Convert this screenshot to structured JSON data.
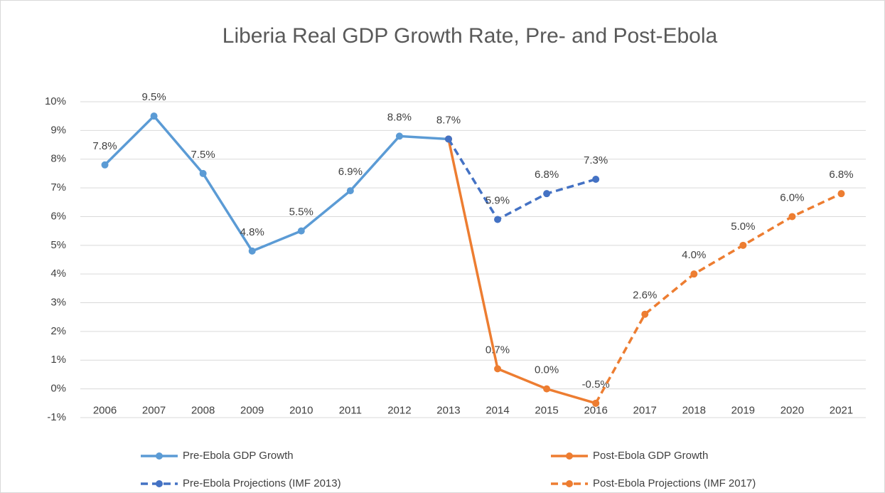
{
  "chart_data": {
    "type": "line",
    "title": "Liberia Real GDP Growth Rate, Pre- and Post-Ebola",
    "categories": [
      "2006",
      "2007",
      "2008",
      "2009",
      "2010",
      "2011",
      "2012",
      "2013",
      "2014",
      "2015",
      "2016",
      "2017",
      "2018",
      "2019",
      "2020",
      "2021"
    ],
    "series": [
      {
        "name": "Pre-Ebola GDP Growth",
        "color": "#5b9bd5",
        "dashed": false,
        "values": [
          7.8,
          9.5,
          7.5,
          4.8,
          5.5,
          6.9,
          8.8,
          8.7,
          null,
          null,
          null,
          null,
          null,
          null,
          null,
          null
        ],
        "value_labels": [
          "7.8%",
          "9.5%",
          "7.5%",
          "4.8%",
          "5.5%",
          "6.9%",
          "8.8%",
          "8.7%",
          null,
          null,
          null,
          null,
          null,
          null,
          null,
          null
        ]
      },
      {
        "name": "Post-Ebola GDP Growth",
        "color": "#ed7d31",
        "dashed": false,
        "values": [
          null,
          null,
          null,
          null,
          null,
          null,
          null,
          8.7,
          0.7,
          0.0,
          -0.5,
          null,
          null,
          null,
          null,
          null
        ],
        "value_labels": [
          null,
          null,
          null,
          null,
          null,
          null,
          null,
          null,
          "0.7%",
          "0.0%",
          "-0.5%",
          null,
          null,
          null,
          null,
          null
        ]
      },
      {
        "name": "Pre-Ebola Projections (IMF 2013)",
        "color": "#4472c4",
        "dashed": true,
        "values": [
          null,
          null,
          null,
          null,
          null,
          null,
          null,
          8.7,
          5.9,
          6.8,
          7.3,
          null,
          null,
          null,
          null,
          null
        ],
        "value_labels": [
          null,
          null,
          null,
          null,
          null,
          null,
          null,
          null,
          "5.9%",
          "6.8%",
          "7.3%",
          null,
          null,
          null,
          null,
          null
        ]
      },
      {
        "name": "Post-Ebola Projections (IMF 2017)",
        "color": "#ed7d31",
        "dashed": true,
        "values": [
          null,
          null,
          null,
          null,
          null,
          null,
          null,
          null,
          null,
          null,
          -0.5,
          2.6,
          4.0,
          5.0,
          6.0,
          6.8
        ],
        "value_labels": [
          null,
          null,
          null,
          null,
          null,
          null,
          null,
          null,
          null,
          null,
          null,
          "2.6%",
          "4.0%",
          "5.0%",
          "6.0%",
          "6.8%"
        ]
      }
    ],
    "ylim": [
      -1,
      10
    ],
    "yticks": [
      {
        "value": -1,
        "label": "-1%"
      },
      {
        "value": 0,
        "label": "0%"
      },
      {
        "value": 1,
        "label": "1%"
      },
      {
        "value": 2,
        "label": "2%"
      },
      {
        "value": 3,
        "label": "3%"
      },
      {
        "value": 4,
        "label": "4%"
      },
      {
        "value": 5,
        "label": "5%"
      },
      {
        "value": 6,
        "label": "6%"
      },
      {
        "value": 7,
        "label": "7%"
      },
      {
        "value": 8,
        "label": "8%"
      },
      {
        "value": 9,
        "label": "9%"
      },
      {
        "value": 10,
        "label": "10%"
      }
    ],
    "grid": true,
    "legend": "bottom"
  }
}
